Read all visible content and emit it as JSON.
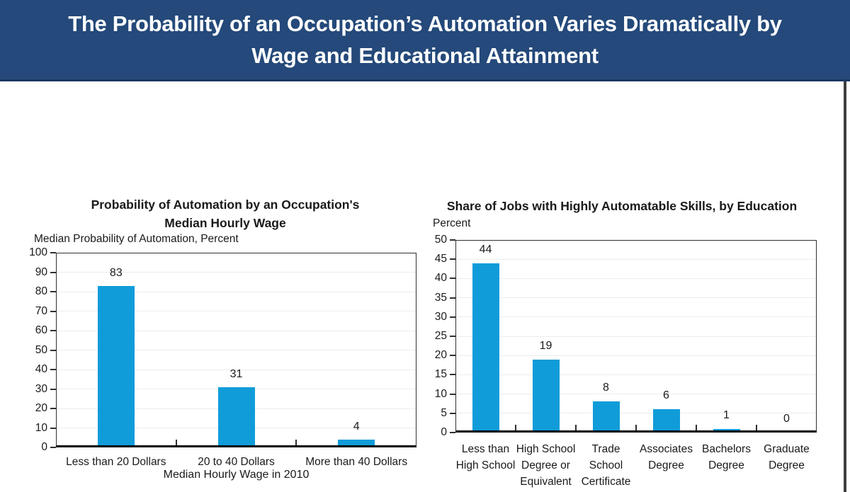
{
  "header": {
    "title_line1": "The Probability of an Occupation’s Automation Varies Dramatically by",
    "title_line2": "Wage and Educational Attainment"
  },
  "colors": {
    "banner_bg": "#24497A",
    "banner_edge": "#1A3862",
    "banner_text": "#FFFFFF",
    "bar": "#109CD9",
    "grid": "#ECECEC",
    "plot_border": "#303030",
    "axis": "#000000",
    "text": "#1A1A1A",
    "page_border": "#3E3E3E"
  },
  "chart_data": [
    {
      "type": "bar",
      "title": "Probability of Automation by an Occupation's Median Hourly Wage",
      "title_lines": [
        "Probability of Automation by an Occupation's",
        "Median Hourly Wage"
      ],
      "ylabel": "Median Probability of Automation, Percent",
      "xlabel": "Median Hourly Wage in 2010",
      "categories": [
        "Less than 20 Dollars",
        "20 to 40 Dollars",
        "More than 40 Dollars"
      ],
      "category_lines": [
        [
          "Less than 20 Dollars"
        ],
        [
          "20 to 40 Dollars"
        ],
        [
          "More than 40 Dollars"
        ]
      ],
      "values": [
        83,
        31,
        4
      ],
      "ylim": [
        0,
        100
      ],
      "ytick_step": 10,
      "grid": true,
      "data_labels": true,
      "legend": "none"
    },
    {
      "type": "bar",
      "title": "Share of Jobs with Highly Automatable Skills, by Education",
      "title_lines": [
        "Share of Jobs with Highly Automatable Skills, by Education"
      ],
      "ylabel": "Percent",
      "xlabel": "",
      "categories": [
        "Less than High School",
        "High School Degree or Equivalent",
        "Trade School Certificate",
        "Associates Degree",
        "Bachelors Degree",
        "Graduate Degree"
      ],
      "category_lines": [
        [
          "Less than",
          "High School"
        ],
        [
          "High School",
          "Degree or",
          "Equivalent"
        ],
        [
          "Trade",
          "School",
          "Certificate"
        ],
        [
          "Associates",
          "Degree"
        ],
        [
          "Bachelors",
          "Degree"
        ],
        [
          "Graduate",
          "Degree"
        ]
      ],
      "values": [
        44,
        19,
        8,
        6,
        1,
        0
      ],
      "ylim": [
        0,
        50
      ],
      "ytick_step": 5,
      "grid": true,
      "data_labels": true,
      "legend": "none"
    }
  ]
}
